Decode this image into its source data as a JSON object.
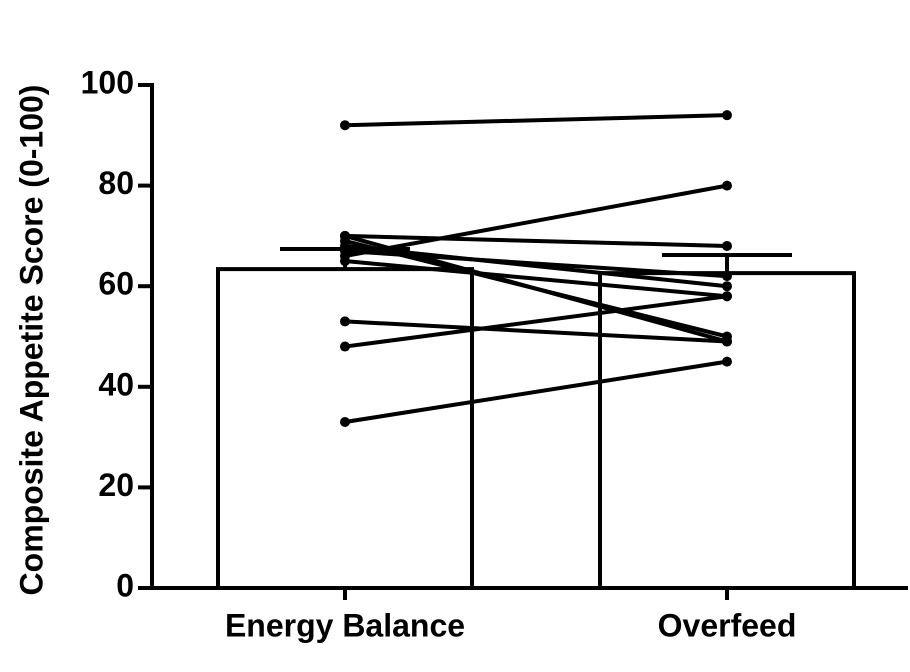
{
  "chart_data": {
    "type": "bar",
    "ylabel": "Composite Appetite Score (0-100)",
    "categories": [
      "Energy Balance",
      "Overfeed"
    ],
    "values": [
      63.4,
      62.6
    ],
    "errors": [
      4.0,
      3.6
    ],
    "color": "#ffffff",
    "edgecolor": "#000000",
    "pairs": [
      [
        92,
        94
      ],
      [
        66,
        80
      ],
      [
        70,
        68
      ],
      [
        70,
        49
      ],
      [
        68,
        60
      ],
      [
        67,
        62
      ],
      [
        65,
        58
      ],
      [
        69,
        50
      ],
      [
        53,
        49
      ],
      [
        48,
        58
      ],
      [
        33,
        45
      ]
    ],
    "ylim": [
      0,
      100
    ],
    "yticks": [
      0,
      20,
      40,
      60,
      80,
      100
    ]
  }
}
